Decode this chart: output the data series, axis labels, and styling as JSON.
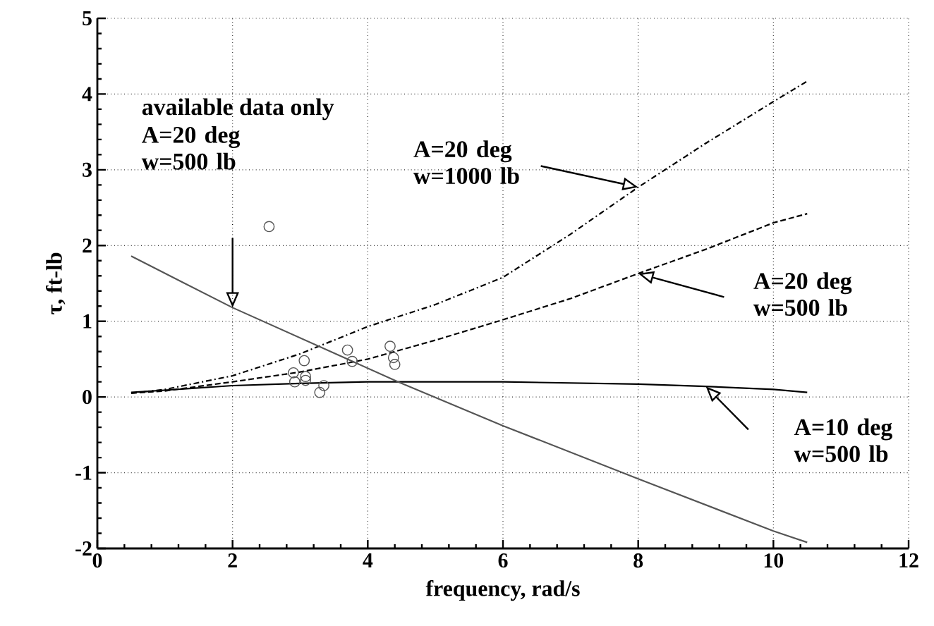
{
  "chart_data": {
    "type": "line",
    "xlabel": "frequency, rad/s",
    "ylabel": "τ, ft-lb",
    "xlim": [
      0,
      12
    ],
    "ylim": [
      -2,
      5
    ],
    "xticks": [
      0,
      2,
      4,
      6,
      8,
      10,
      12
    ],
    "yticks": [
      -2,
      -1,
      0,
      1,
      2,
      3,
      4,
      5
    ],
    "grid": true,
    "marker": "none",
    "series": [
      {
        "color": "#000000",
        "line_style": "dashdot",
        "x": [
          0.5,
          1,
          2,
          3,
          4,
          5,
          6,
          7,
          8,
          9,
          10,
          10.5
        ],
        "values": [
          0.05,
          0.1,
          0.28,
          0.57,
          0.93,
          1.22,
          1.58,
          2.15,
          2.77,
          3.35,
          3.9,
          4.17
        ]
      },
      {
        "color": "#000000",
        "line_style": "dashed",
        "x": [
          0.5,
          1,
          2,
          3,
          4,
          5,
          6,
          7,
          8,
          9,
          10,
          10.5
        ],
        "values": [
          0.05,
          0.08,
          0.2,
          0.33,
          0.5,
          0.75,
          1.02,
          1.3,
          1.63,
          1.95,
          2.3,
          2.42
        ]
      },
      {
        "color": "#000000",
        "line_style": "solid",
        "x": [
          0.5,
          2,
          3,
          4,
          6,
          8,
          9,
          10,
          10.5
        ],
        "values": [
          0.06,
          0.15,
          0.18,
          0.2,
          0.2,
          0.17,
          0.14,
          0.1,
          0.06
        ]
      },
      {
        "color": "#555555",
        "line_style": "solid",
        "x": [
          0.5,
          2,
          4.45,
          6,
          8,
          10,
          10.5
        ],
        "values": [
          1.86,
          1.18,
          0.2,
          -0.38,
          -1.08,
          -1.77,
          -1.92
        ]
      },
      {
        "type": "scatter",
        "color": "#555555",
        "marker": "circle",
        "x": [
          2.54,
          2.9,
          2.92,
          3.06,
          3.08,
          3.08,
          3.29,
          3.35,
          3.7,
          3.77,
          4.33,
          4.38,
          4.4
        ],
        "values": [
          2.25,
          0.32,
          0.2,
          0.48,
          0.27,
          0.22,
          0.06,
          0.15,
          0.62,
          0.47,
          0.67,
          0.52,
          0.43
        ]
      }
    ],
    "annotations": [
      "available data only",
      "A=20 deg w=500 lb",
      "A=20 deg w=1000 lb",
      "A=20 deg w=500 lb",
      "A=10 deg w=500 lb"
    ]
  }
}
